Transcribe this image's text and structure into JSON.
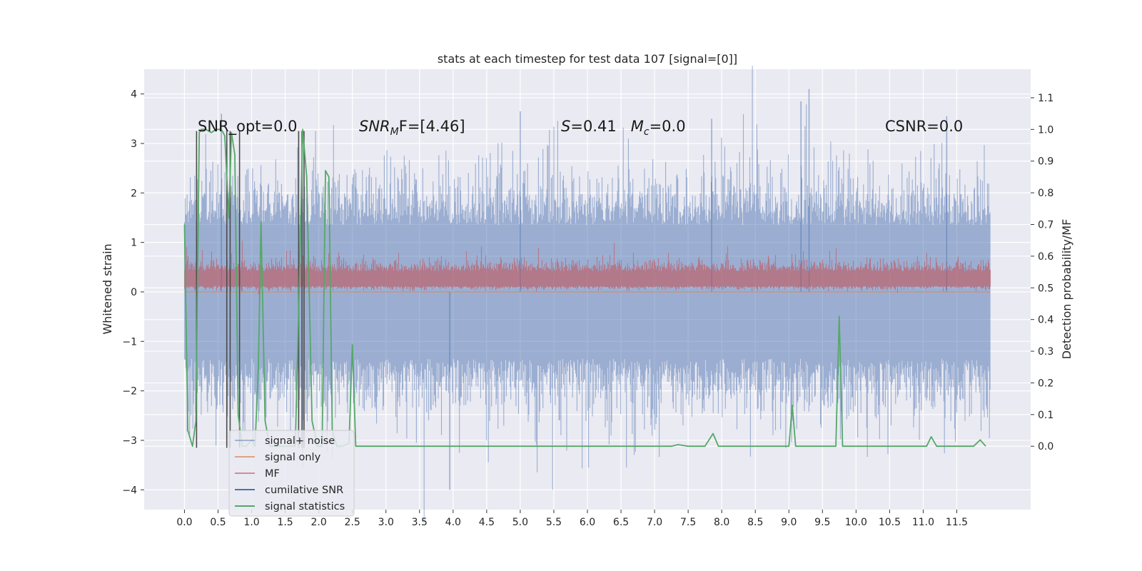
{
  "chart_data": {
    "type": "line",
    "title": "stats at each timestep for test data 107 [signal=[0]]",
    "xlabel": "",
    "ylabel": "Whitened strain",
    "y2label": "Detection probability/MF",
    "xlim": [
      -0.6,
      12.6
    ],
    "ylim": [
      -4.4,
      4.5
    ],
    "y2lim": [
      -0.2,
      1.19
    ],
    "x_ticks": [
      "0.0",
      "0.5",
      "1.0",
      "1.5",
      "2.0",
      "2.5",
      "3.0",
      "3.5",
      "4.0",
      "4.5",
      "5.0",
      "5.5",
      "6.0",
      "6.5",
      "7.0",
      "7.5",
      "8.0",
      "8.5",
      "9.0",
      "9.5",
      "10.0",
      "10.5",
      "11.0",
      "11.5"
    ],
    "y_ticks": [
      "4",
      "3",
      "2",
      "1",
      "0",
      "−1",
      "−2",
      "−3",
      "−4"
    ],
    "y2_ticks": [
      "1.1",
      "1.0",
      "0.9",
      "0.8",
      "0.7",
      "0.6",
      "0.5",
      "0.4",
      "0.3",
      "0.2",
      "0.1",
      "0.0"
    ],
    "grid": true,
    "legend": {
      "placement": "lower-left",
      "entries": [
        "signal+ noise",
        "signal only",
        "MF",
        "cumilative SNR",
        "signal statistics"
      ]
    },
    "annotations": [
      {
        "text": "SNR_opt=0.0"
      },
      {
        "text": "SNR_MF=[4.46]",
        "parts": [
          "SNR",
          "M",
          "F=[4.46]"
        ]
      },
      {
        "text": "S=0.41   M_c=0.0",
        "parts": [
          "S",
          "=0.41   ",
          "M",
          "c",
          "=0.0"
        ]
      },
      {
        "text": "CSNR=0.0"
      }
    ],
    "series": [
      {
        "name": "signal+ noise",
        "axis": "left",
        "color": "#4c72b0",
        "style": "noise",
        "x_range": [
          0.0,
          12.0
        ],
        "typical_band": [
          -1.8,
          1.9
        ],
        "peaks": [
          [
            9.3,
            4.1
          ],
          [
            3.95,
            -4.0
          ],
          [
            0.55,
            3.6
          ],
          [
            5.0,
            3.65
          ],
          [
            7.85,
            3.5
          ],
          [
            9.18,
            3.85
          ],
          [
            11.35,
            3.55
          ]
        ]
      },
      {
        "name": "signal only",
        "axis": "left",
        "color": "#dd8452",
        "values_constant": 0.0
      },
      {
        "name": "MF",
        "axis": "left",
        "color": "#c44e52",
        "style": "noise",
        "x_range": [
          0.0,
          12.0
        ],
        "typical_band": [
          0.05,
          0.6
        ]
      },
      {
        "name": "cumilative SNR",
        "axis": "left",
        "color": "#4c4c4c",
        "segments_x": [
          0.18,
          0.63,
          0.68,
          0.82,
          1.7,
          1.75,
          1.78
        ]
      },
      {
        "name": "signal statistics",
        "axis": "right",
        "color": "#55a868",
        "x": [
          0.0,
          0.05,
          0.12,
          0.17,
          0.22,
          0.25,
          0.32,
          0.4,
          0.47,
          0.55,
          0.6,
          0.66,
          0.7,
          0.75,
          0.8,
          0.86,
          0.92,
          1.0,
          1.05,
          1.1,
          1.14,
          1.2,
          1.27,
          1.35,
          1.45,
          1.55,
          1.65,
          1.72,
          1.76,
          1.82,
          1.9,
          1.98,
          2.05,
          2.1,
          2.15,
          2.2,
          2.27,
          2.35,
          2.45,
          2.5,
          2.55,
          2.6,
          3.0,
          4.0,
          5.0,
          6.0,
          7.0,
          7.25,
          7.35,
          7.5,
          7.75,
          7.87,
          7.95,
          8.05,
          8.5,
          9.0,
          9.05,
          9.1,
          9.4,
          9.5,
          9.6,
          9.7,
          9.75,
          9.8,
          10.0,
          10.5,
          11.0,
          11.05,
          11.12,
          11.2,
          11.25,
          11.5,
          11.75,
          11.85,
          11.93
        ],
        "y": [
          0.7,
          0.05,
          0.0,
          0.08,
          0.99,
          1.0,
          1.0,
          0.99,
          1.0,
          1.0,
          0.98,
          0.72,
          0.99,
          0.92,
          0.1,
          0.0,
          0.0,
          0.02,
          0.0,
          0.25,
          0.71,
          0.08,
          0.0,
          0.0,
          0.0,
          0.0,
          0.0,
          0.6,
          1.0,
          0.85,
          0.08,
          0.0,
          0.0,
          0.87,
          0.85,
          0.05,
          0.0,
          0.0,
          0.01,
          0.32,
          0.0,
          0.0,
          0.0,
          0.0,
          0.0,
          0.0,
          0.0,
          0.0,
          0.005,
          0.0,
          0.0,
          0.04,
          0.0,
          0.0,
          0.0,
          0.0,
          0.13,
          0.0,
          0.0,
          0.0,
          0.0,
          0.0,
          0.41,
          0.0,
          0.0,
          0.0,
          0.0,
          0.0,
          0.03,
          0.0,
          0.0,
          0.0,
          0.0,
          0.02,
          0.0
        ]
      }
    ]
  }
}
